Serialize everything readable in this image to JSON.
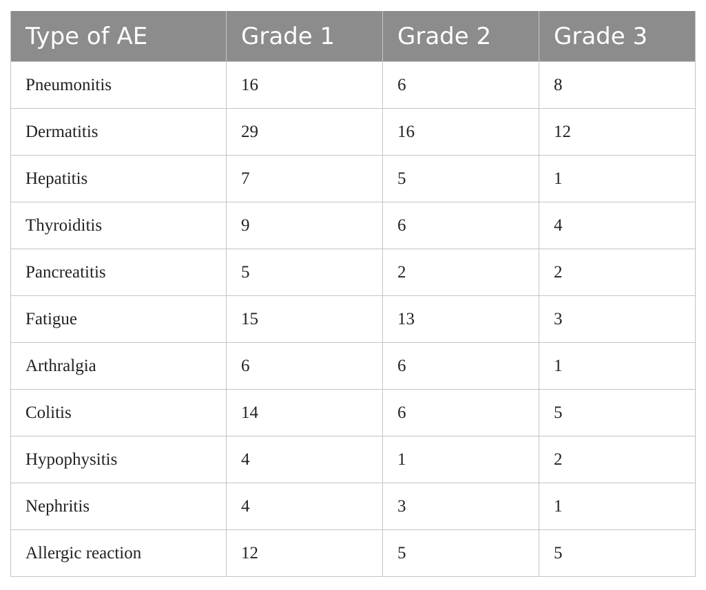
{
  "table": {
    "headers": [
      "Type of AE",
      "Grade 1",
      "Grade 2",
      "Grade 3"
    ],
    "rows": [
      [
        "Pneumonitis",
        "16",
        "6",
        "8"
      ],
      [
        "Dermatitis",
        "29",
        "16",
        "12"
      ],
      [
        "Hepatitis",
        "7",
        "5",
        "1"
      ],
      [
        "Thyroiditis",
        "9",
        "6",
        "4"
      ],
      [
        "Pancreatitis",
        "5",
        "2",
        "2"
      ],
      [
        "Fatigue",
        "15",
        "13",
        "3"
      ],
      [
        "Arthralgia",
        "6",
        "6",
        "1"
      ],
      [
        "Colitis",
        "14",
        "6",
        "5"
      ],
      [
        "Hypophysitis",
        "4",
        "1",
        "2"
      ],
      [
        "Nephritis",
        "4",
        "3",
        "1"
      ],
      [
        "Allergic reaction",
        "12",
        "5",
        "5"
      ]
    ]
  },
  "colors": {
    "header_background": "#8c8c8c",
    "header_text": "#ffffff",
    "grid_lines": "#c4c4c4",
    "body_text": "#222222"
  }
}
